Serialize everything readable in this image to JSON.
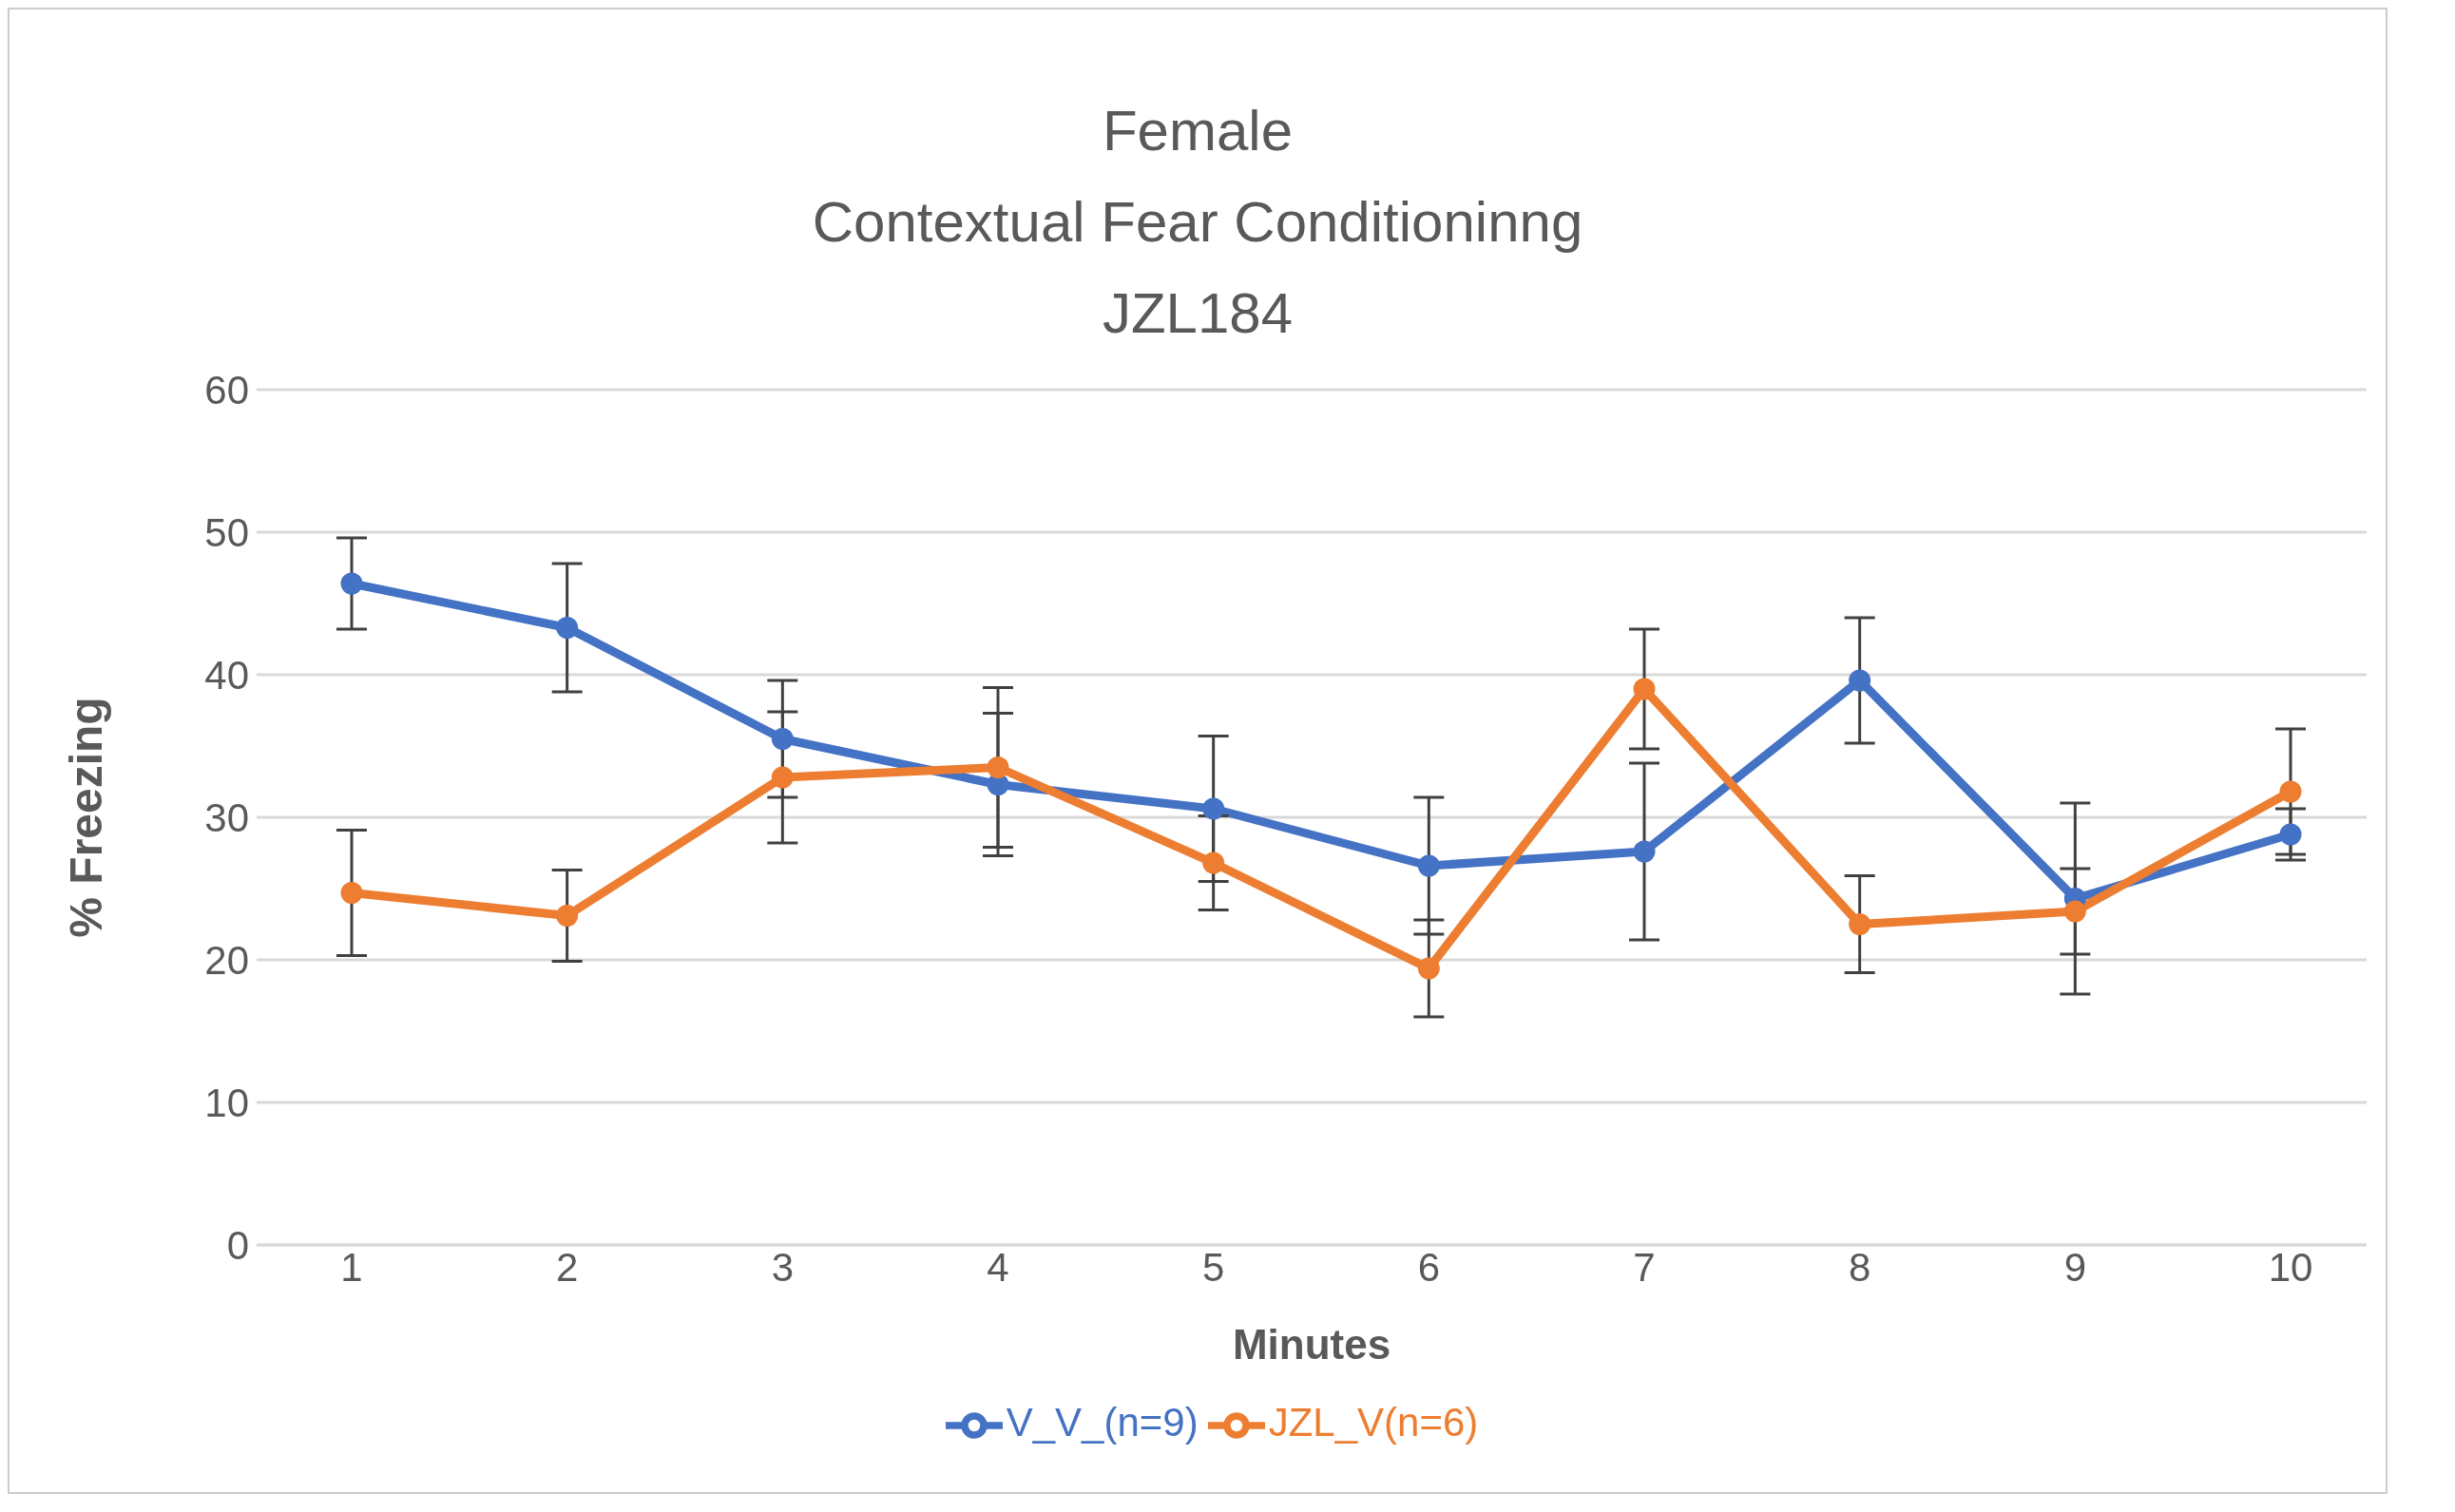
{
  "chart_data": {
    "type": "line",
    "title": "Female\nContextual Fear Conditioninng\nJZL184",
    "xlabel": "Minutes",
    "ylabel": "% Freezing",
    "categories": [
      "1",
      "2",
      "3",
      "4",
      "5",
      "6",
      "7",
      "8",
      "9",
      "10"
    ],
    "series": [
      {
        "name": "V_V_(n=9)",
        "color": "#4472c4",
        "values": [
          46.4,
          43.3,
          35.5,
          32.3,
          30.6,
          26.6,
          27.6,
          39.6,
          24.3,
          28.8
        ],
        "errors": [
          3.2,
          4.5,
          4.1,
          5.0,
          5.1,
          4.8,
          6.2,
          4.4,
          6.7,
          1.8
        ]
      },
      {
        "name": "JZL_V(n=6)",
        "color": "#ed7d31",
        "values": [
          24.7,
          23.1,
          32.8,
          33.5,
          26.8,
          19.4,
          39.0,
          22.5,
          23.4,
          31.8
        ],
        "errors": [
          4.4,
          3.2,
          4.6,
          5.6,
          3.3,
          3.4,
          4.2,
          3.4,
          3.0,
          4.4
        ]
      }
    ],
    "ylim": [
      0,
      60
    ],
    "yticks": [
      0,
      10,
      20,
      30,
      40,
      50,
      60
    ],
    "grid": "y",
    "legend": "bottom",
    "marker": "circle",
    "line_style": "solid"
  }
}
